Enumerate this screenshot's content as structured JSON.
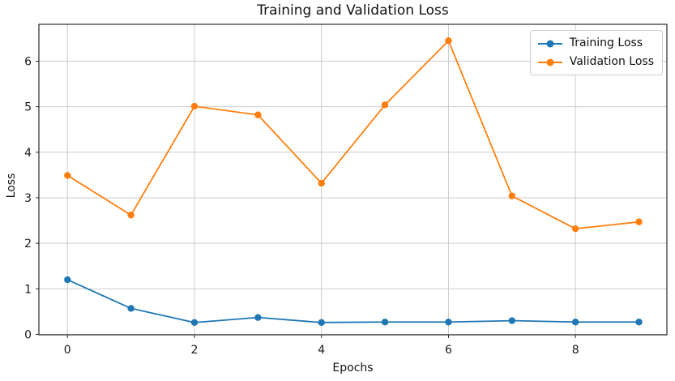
{
  "figure": {
    "background": "#ffffff"
  },
  "chart_data": {
    "type": "line",
    "title": "Training and Validation Loss",
    "xlabel": "Epochs",
    "ylabel": "Loss",
    "x": [
      0,
      1,
      2,
      3,
      4,
      5,
      6,
      7,
      8,
      9
    ],
    "series": [
      {
        "name": "Training Loss",
        "color": "#1f77b4",
        "marker": "circle",
        "values": [
          1.2,
          0.57,
          0.26,
          0.37,
          0.26,
          0.27,
          0.27,
          0.3,
          0.27,
          0.27
        ]
      },
      {
        "name": "Validation Loss",
        "color": "#ff7f0e",
        "marker": "circle",
        "values": [
          3.49,
          2.62,
          5.01,
          4.82,
          3.32,
          5.04,
          6.45,
          3.04,
          2.32,
          2.47
        ]
      }
    ],
    "xlim": [
      -0.45,
      9.44
    ],
    "ylim": [
      -0.01,
      6.81
    ],
    "xticks": [
      0,
      2,
      4,
      6,
      8
    ],
    "yticks": [
      0,
      1,
      2,
      3,
      4,
      5,
      6
    ],
    "grid": true,
    "legend_position": "upper right",
    "colors": {
      "grid": "#cccccc",
      "spine": "#2b2b2b",
      "tick_text": "#1a1a1a"
    }
  }
}
